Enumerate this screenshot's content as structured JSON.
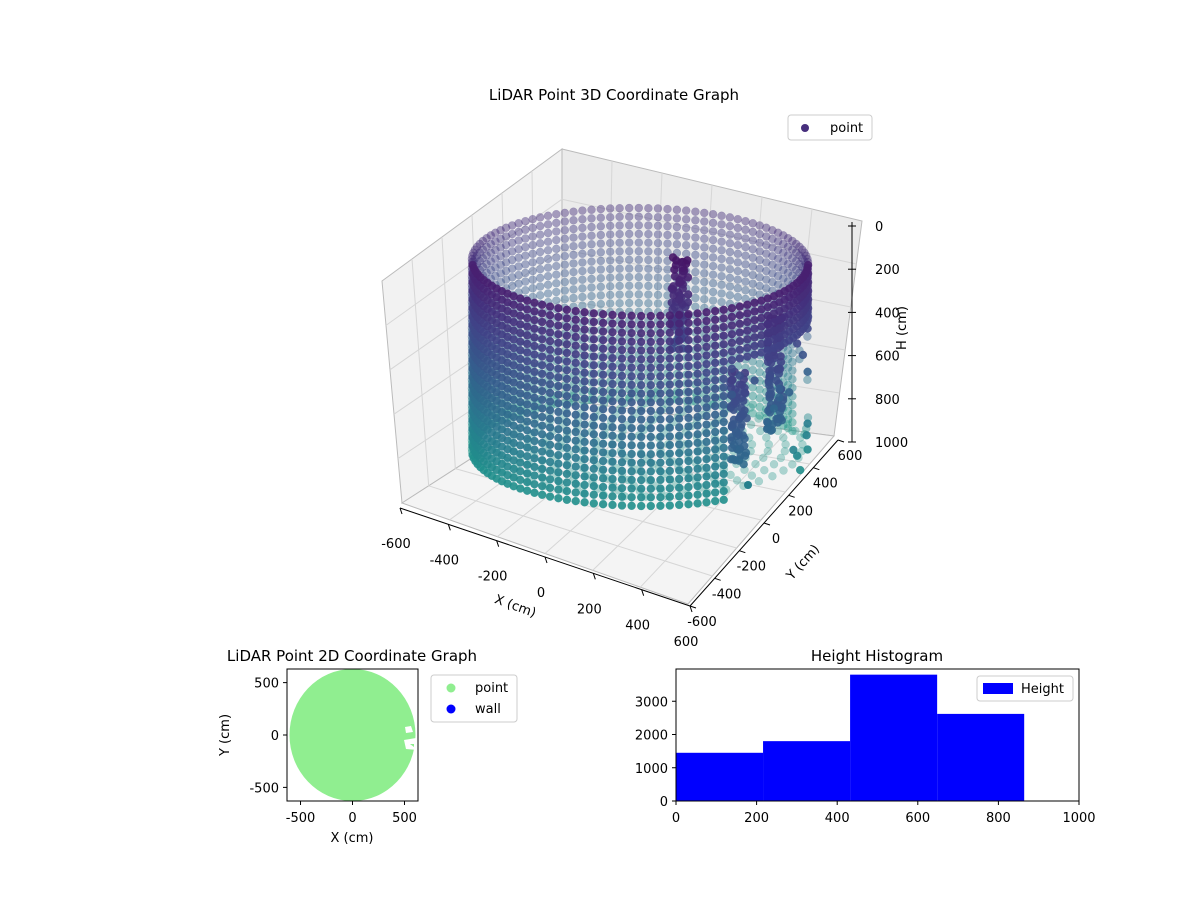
{
  "chart_data": [
    {
      "type": "scatter3d",
      "title": "LiDAR Point 3D Coordinate Graph",
      "xlabel": "X (cm)",
      "ylabel": "Y (cm)",
      "zlabel": "H (cm)",
      "xticks": [
        -600,
        -400,
        -200,
        0,
        200,
        400,
        600
      ],
      "yticks": [
        -600,
        -400,
        -200,
        0,
        200,
        400,
        600
      ],
      "zticks": [
        0,
        200,
        400,
        600,
        800,
        1000
      ],
      "xlim": [
        -600,
        600
      ],
      "ylim": [
        -600,
        600
      ],
      "zlim": [
        0,
        1000
      ],
      "z_inverted": true,
      "grid": true,
      "legend": {
        "placement": "upper-right",
        "entries": [
          {
            "label": "point",
            "color": "#472f7d"
          }
        ]
      },
      "series": [
        {
          "name": "point",
          "shape": "cylinder-wall",
          "radius": 600,
          "height_range": [
            0,
            1000
          ],
          "colormap": "viridis",
          "color_by": "height",
          "opening_angle_deg": [
            300,
            20
          ],
          "interior_objects": [
            {
              "x": 150,
              "y": 200,
              "h_range": [
                80,
                560
              ]
            },
            {
              "x": 480,
              "y": -80,
              "h_range": [
                250,
                850
              ]
            },
            {
              "x": 340,
              "y": -360,
              "h_range": [
                420,
                900
              ]
            }
          ],
          "outlier": {
            "x": 560,
            "y": -520,
            "h": 980
          }
        }
      ]
    },
    {
      "type": "scatter",
      "title": "LiDAR Point 2D Coordinate Graph",
      "xlabel": "X (cm)",
      "ylabel": "Y (cm)",
      "xticks": [
        -500,
        0,
        500
      ],
      "yticks": [
        -500,
        0,
        500
      ],
      "xlim": [
        -630,
        630
      ],
      "ylim": [
        -630,
        630
      ],
      "legend": {
        "placement": "outside-right",
        "entries": [
          {
            "label": "point",
            "color": "#90ee90"
          },
          {
            "label": "wall",
            "color": "#0000ff"
          }
        ]
      },
      "series": [
        {
          "name": "point",
          "shape": "disk",
          "center": [
            0,
            0
          ],
          "radius": 600,
          "color": "#90ee90"
        },
        {
          "name": "wall",
          "values": [],
          "color": "#0000ff"
        }
      ]
    },
    {
      "type": "bar",
      "title": "Height Histogram",
      "bin_edges": [
        0,
        216,
        432,
        648,
        864
      ],
      "values": [
        1450,
        1800,
        3800,
        2620
      ],
      "xlim": [
        0,
        1000
      ],
      "ylim": [
        0,
        3970
      ],
      "xticks": [
        0,
        200,
        400,
        600,
        800,
        1000
      ],
      "yticks": [
        0,
        1000,
        2000,
        3000
      ],
      "color": "#0000ff",
      "legend": {
        "placement": "upper-right",
        "entries": [
          {
            "label": "Height",
            "color": "#0000ff"
          }
        ]
      }
    }
  ]
}
